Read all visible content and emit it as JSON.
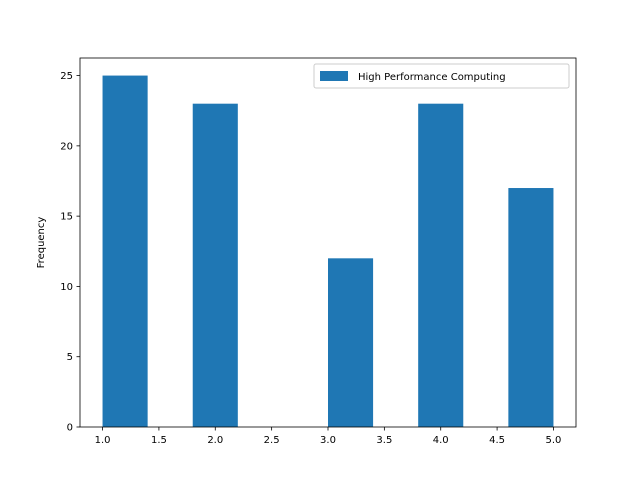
{
  "chart_data": {
    "type": "bar",
    "title": "",
    "xlabel": "",
    "ylabel": "Frequency",
    "xlim": [
      0.8,
      5.2
    ],
    "ylim": [
      0,
      26.25
    ],
    "x_ticks": [
      "1.0",
      "1.5",
      "2.0",
      "2.5",
      "3.0",
      "3.5",
      "4.0",
      "4.5",
      "5.0"
    ],
    "y_ticks": [
      "0",
      "5",
      "10",
      "15",
      "20",
      "25"
    ],
    "bin_edges": [
      1.0,
      1.4,
      1.8,
      2.2,
      2.6,
      3.0,
      3.4,
      3.8,
      4.2,
      4.6,
      5.0
    ],
    "values": [
      25,
      0,
      23,
      0,
      0,
      12,
      0,
      23,
      0,
      17
    ],
    "series": [
      {
        "name": "High Performance Computing",
        "values": [
          25,
          0,
          23,
          0,
          0,
          12,
          0,
          23,
          0,
          17
        ]
      }
    ],
    "legend_position": "top-right",
    "grid": false,
    "colors": {
      "bar": "#1f77b4"
    }
  }
}
